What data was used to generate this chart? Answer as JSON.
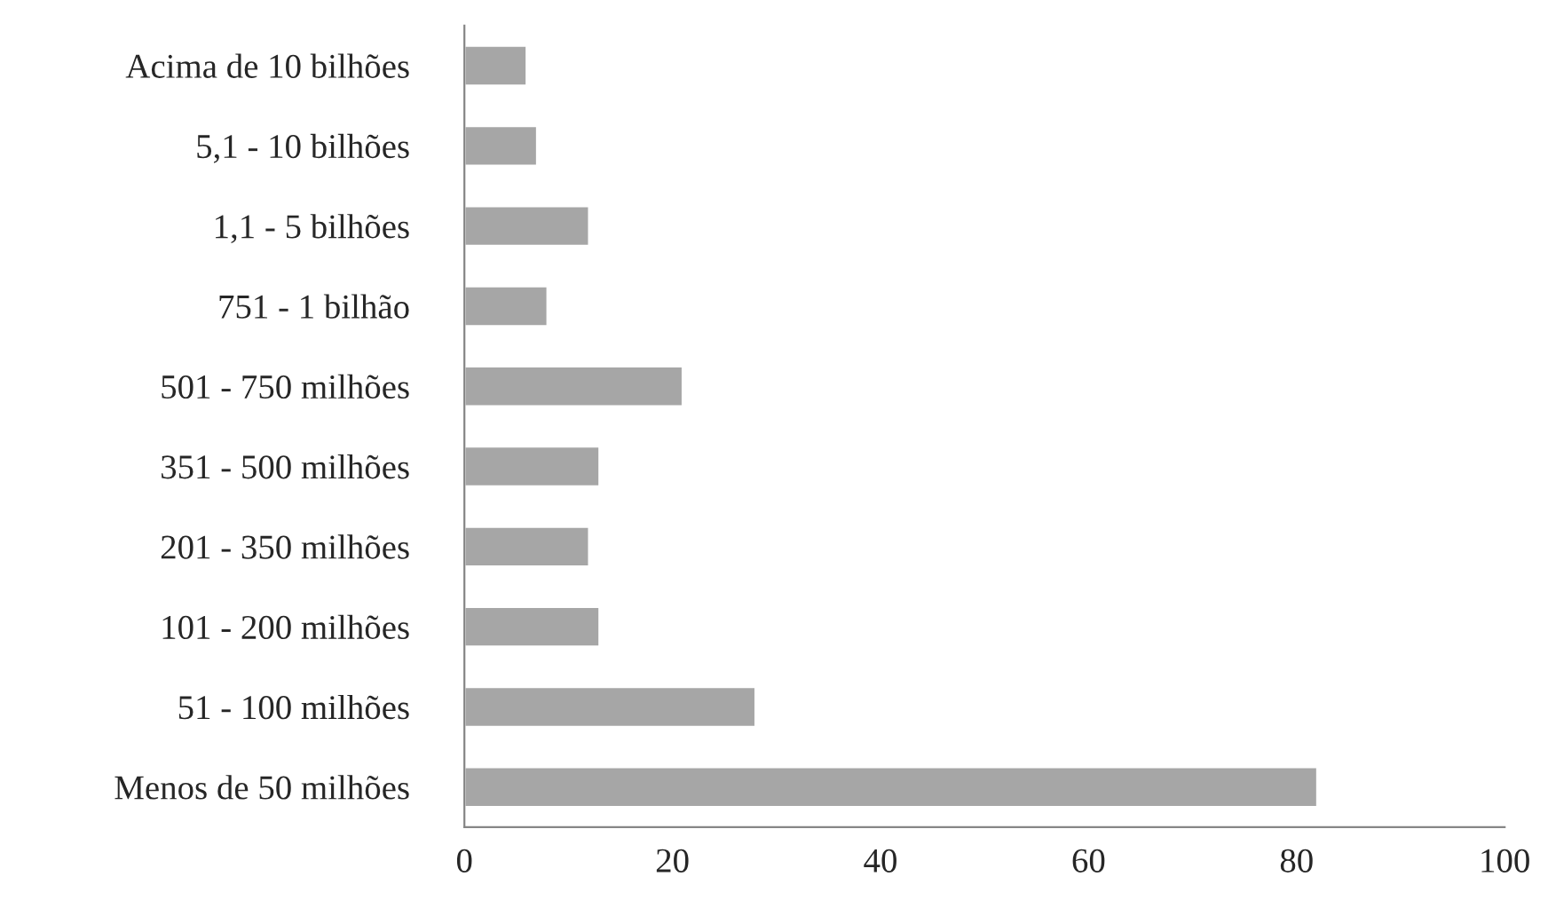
{
  "chart_data": {
    "type": "bar",
    "orientation": "horizontal",
    "categories": [
      "Acima de 10 bilhões",
      "5,1 - 10 bilhões",
      "1,1 - 5 bilhões",
      "751 - 1 bilhão",
      "501 - 750 milhões",
      "351 - 500 milhões",
      "201 - 350 milhões",
      "101 - 200 milhões",
      "51 - 100 milhões",
      "Menos de 50 milhões"
    ],
    "values": [
      6,
      7,
      12,
      8,
      21,
      13,
      12,
      13,
      28,
      82
    ],
    "color": "#a6a6a6",
    "xlim": [
      0,
      100
    ],
    "xticks": [
      0,
      20,
      40,
      60,
      80,
      100
    ],
    "grid": false,
    "legend": false
  }
}
